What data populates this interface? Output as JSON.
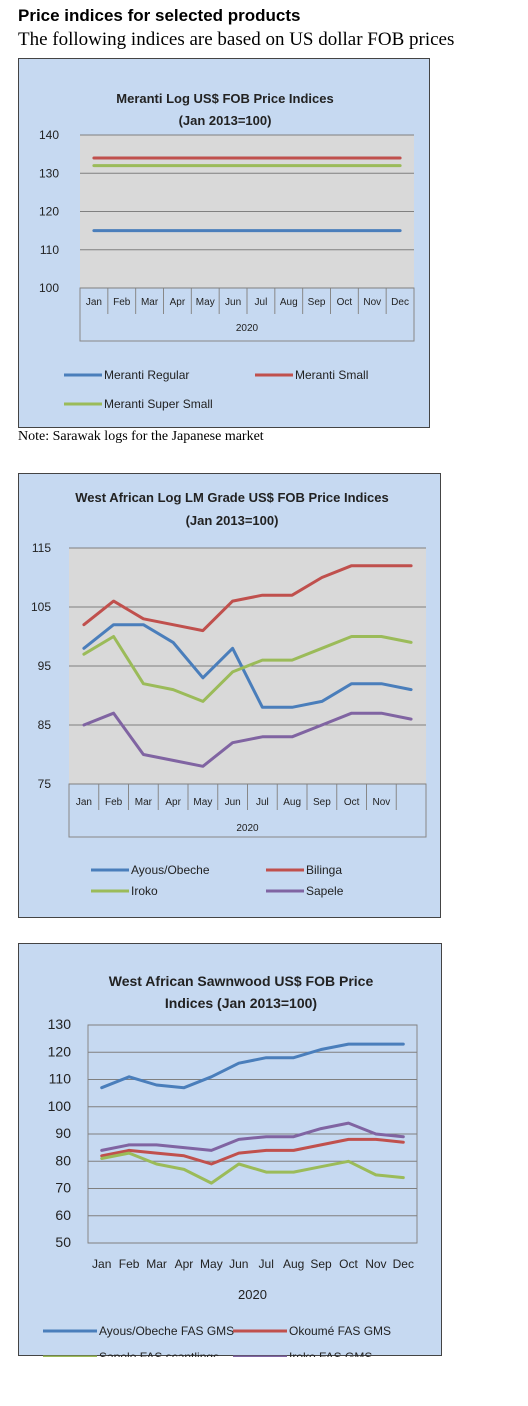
{
  "header": {
    "title": "Price indices for selected products",
    "subtitle": "The following indices are based on US dollar FOB prices"
  },
  "note": "Note: Sarawak logs for the Japanese market",
  "chart_data": [
    {
      "type": "line",
      "title": [
        "Meranti Log US$ FOB Price Indices",
        "(Jan 2013=100)"
      ],
      "xlabel": "2020",
      "categories": [
        "Jan",
        "Feb",
        "Mar",
        "Apr",
        "May",
        "Jun",
        "Jul",
        "Aug",
        "Sep",
        "Oct",
        "Nov",
        "Dec"
      ],
      "ylim": [
        100,
        140
      ],
      "yticks": [
        100,
        110,
        120,
        130,
        140
      ],
      "grid": true,
      "legend_position": "bottom",
      "series": [
        {
          "name": "Meranti Regular",
          "color": "#4a7ebb",
          "values": [
            115,
            115,
            115,
            115,
            115,
            115,
            115,
            115,
            115,
            115,
            115,
            115
          ]
        },
        {
          "name": "Meranti Small",
          "color": "#c0504d",
          "values": [
            134,
            134,
            134,
            134,
            134,
            134,
            134,
            134,
            134,
            134,
            134,
            134
          ]
        },
        {
          "name": "Meranti Super Small",
          "color": "#9bbb59",
          "values": [
            132,
            132,
            132,
            132,
            132,
            132,
            132,
            132,
            132,
            132,
            132,
            132
          ]
        }
      ]
    },
    {
      "type": "line",
      "title": [
        "West African Log LM Grade US$ FOB Price Indices",
        "(Jan 2013=100)"
      ],
      "xlabel": "2020",
      "categories": [
        "Jan",
        "Feb",
        "Mar",
        "Apr",
        "May",
        "Jun",
        "Jul",
        "Aug",
        "Sep",
        "Oct",
        "Nov",
        ""
      ],
      "ylim": [
        75,
        115
      ],
      "yticks": [
        75,
        85,
        95,
        105,
        115
      ],
      "grid": true,
      "legend_position": "bottom",
      "series": [
        {
          "name": "Ayous/Obeche",
          "color": "#4a7ebb",
          "values": [
            98,
            102,
            102,
            99,
            93,
            98,
            88,
            88,
            89,
            92,
            92,
            91
          ]
        },
        {
          "name": "Bilinga",
          "color": "#c0504d",
          "values": [
            102,
            106,
            103,
            102,
            101,
            106,
            107,
            107,
            110,
            112,
            112,
            112
          ]
        },
        {
          "name": "Iroko",
          "color": "#9bbb59",
          "values": [
            97,
            100,
            92,
            91,
            89,
            94,
            96,
            96,
            98,
            100,
            100,
            99
          ]
        },
        {
          "name": "Sapele",
          "color": "#8064a2",
          "values": [
            85,
            87,
            80,
            79,
            78,
            82,
            83,
            83,
            85,
            87,
            87,
            86
          ]
        }
      ]
    },
    {
      "type": "line",
      "title": [
        "West African Sawnwood US$ FOB Price",
        "Indices (Jan 2013=100)"
      ],
      "xlabel": "2020",
      "categories": [
        "Jan",
        "Feb",
        "Mar",
        "Apr",
        "May",
        "Jun",
        "Jul",
        "Aug",
        "Sep",
        "Oct",
        "Nov",
        "Dec"
      ],
      "ylim": [
        50,
        130
      ],
      "yticks": [
        50,
        60,
        70,
        80,
        90,
        100,
        110,
        120,
        130
      ],
      "grid": true,
      "legend_position": "bottom",
      "series": [
        {
          "name": "Ayous/Obeche FAS GMS",
          "color": "#4a7ebb",
          "values": [
            107,
            111,
            108,
            107,
            111,
            116,
            118,
            118,
            121,
            123,
            123,
            123
          ]
        },
        {
          "name": "Okoumé FAS GMS",
          "color": "#c0504d",
          "values": [
            82,
            84,
            83,
            82,
            79,
            83,
            84,
            84,
            86,
            88,
            88,
            87
          ]
        },
        {
          "name": "Sapele FAS scantlings",
          "color": "#9bbb59",
          "values": [
            81,
            83,
            79,
            77,
            72,
            79,
            76,
            76,
            78,
            80,
            75,
            74
          ]
        },
        {
          "name": "Iroko FAS GMS",
          "color": "#8064a2",
          "values": [
            84,
            86,
            86,
            85,
            84,
            88,
            89,
            89,
            92,
            94,
            90,
            89
          ]
        }
      ]
    }
  ]
}
